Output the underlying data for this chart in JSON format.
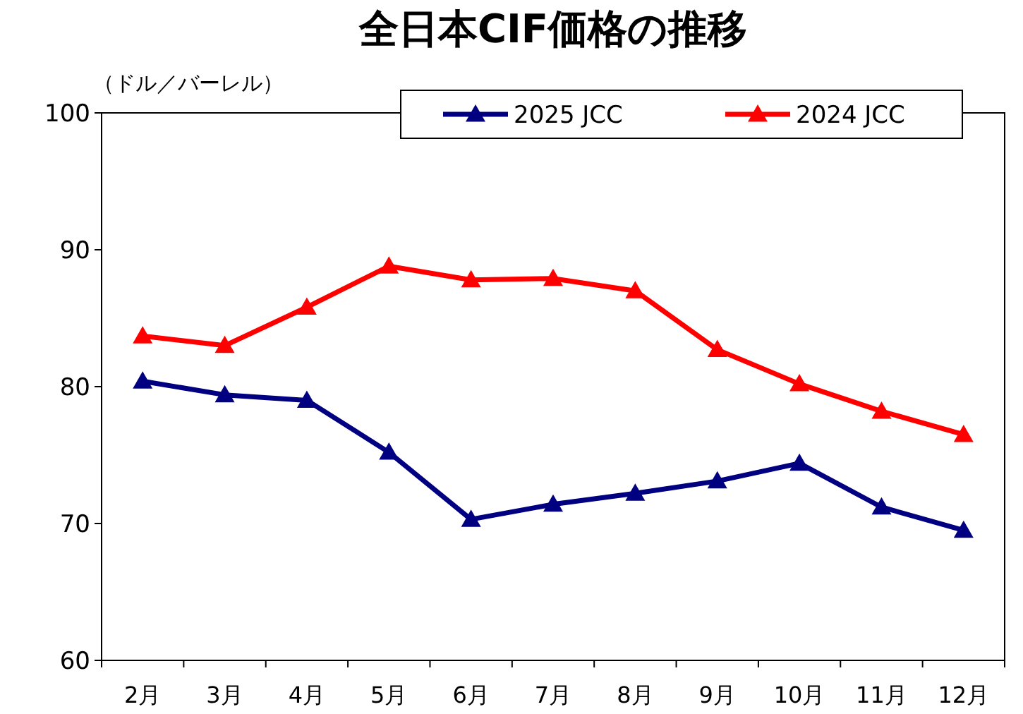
{
  "chart_data": {
    "type": "line",
    "title": "全日本CIF価格の推移",
    "ylabel": "（ドル／バーレル）",
    "categories": [
      "2月",
      "3月",
      "4月",
      "5月",
      "6月",
      "7月",
      "8月",
      "9月",
      "10月",
      "11月",
      "12月"
    ],
    "series": [
      {
        "name": "2025 JCC",
        "color": "#000080",
        "values": [
          80.4,
          79.4,
          79.0,
          75.2,
          70.3,
          71.4,
          72.2,
          73.1,
          74.4,
          71.2,
          69.5
        ]
      },
      {
        "name": "2024 JCC",
        "color": "#ff0000",
        "values": [
          83.7,
          83.0,
          85.8,
          88.8,
          87.8,
          87.9,
          87.0,
          82.7,
          80.2,
          78.2,
          76.5
        ]
      }
    ],
    "ylim": [
      60,
      100
    ],
    "yticks": [
      60,
      70,
      80,
      90,
      100
    ],
    "legend": "top right",
    "marker": "triangle",
    "line_style": "solid"
  }
}
